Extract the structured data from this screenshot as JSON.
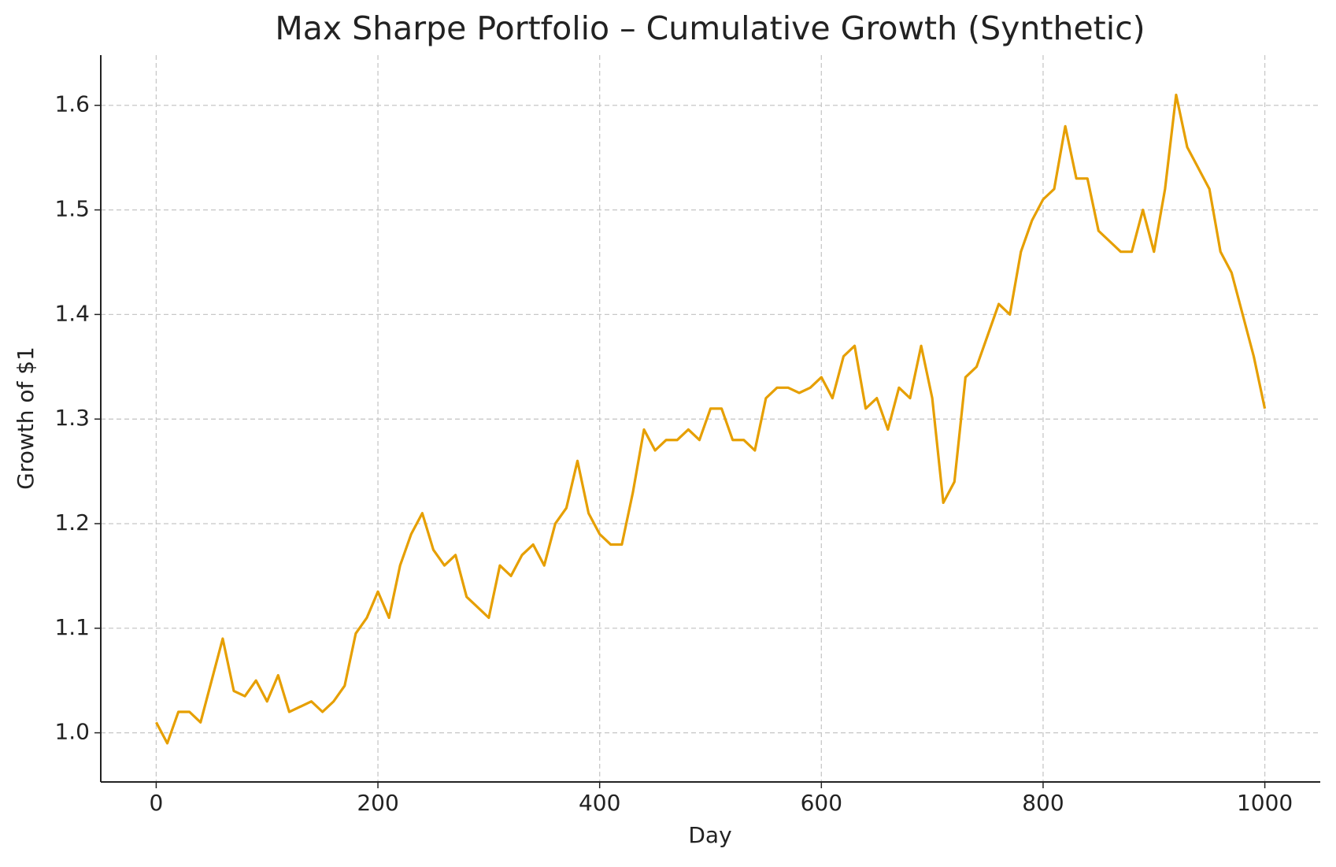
{
  "chart_data": {
    "type": "line",
    "title": "Max Sharpe Portfolio – Cumulative Growth (Synthetic)",
    "x_label": "Day",
    "y_label": "Growth of $1",
    "x": [
      0,
      10,
      20,
      30,
      40,
      50,
      60,
      70,
      80,
      90,
      100,
      110,
      120,
      130,
      140,
      150,
      160,
      170,
      180,
      190,
      200,
      210,
      220,
      230,
      240,
      250,
      260,
      270,
      280,
      290,
      300,
      310,
      320,
      330,
      340,
      350,
      360,
      370,
      380,
      390,
      400,
      410,
      420,
      430,
      440,
      450,
      460,
      470,
      480,
      490,
      500,
      510,
      520,
      530,
      540,
      550,
      560,
      570,
      580,
      590,
      600,
      610,
      620,
      630,
      640,
      650,
      660,
      670,
      680,
      690,
      700,
      710,
      720,
      730,
      740,
      750,
      760,
      770,
      780,
      790,
      800,
      810,
      820,
      830,
      840,
      850,
      860,
      870,
      880,
      890,
      900,
      910,
      920,
      930,
      940,
      950,
      960,
      970,
      980,
      990,
      1000
    ],
    "series": [
      {
        "name": "Max Sharpe",
        "color": "#E69F00",
        "values": [
          1.01,
          0.99,
          1.02,
          1.02,
          1.01,
          1.05,
          1.09,
          1.04,
          1.035,
          1.05,
          1.03,
          1.055,
          1.02,
          1.025,
          1.03,
          1.02,
          1.03,
          1.045,
          1.095,
          1.11,
          1.135,
          1.11,
          1.16,
          1.19,
          1.21,
          1.175,
          1.16,
          1.17,
          1.13,
          1.12,
          1.11,
          1.16,
          1.15,
          1.17,
          1.18,
          1.16,
          1.2,
          1.215,
          1.26,
          1.21,
          1.19,
          1.18,
          1.18,
          1.23,
          1.29,
          1.27,
          1.28,
          1.28,
          1.29,
          1.28,
          1.31,
          1.31,
          1.28,
          1.28,
          1.27,
          1.32,
          1.33,
          1.33,
          1.325,
          1.33,
          1.34,
          1.32,
          1.36,
          1.37,
          1.31,
          1.32,
          1.29,
          1.33,
          1.32,
          1.37,
          1.32,
          1.22,
          1.24,
          1.34,
          1.35,
          1.38,
          1.41,
          1.4,
          1.46,
          1.49,
          1.51,
          1.52,
          1.58,
          1.53,
          1.53,
          1.48,
          1.47,
          1.46,
          1.46,
          1.5,
          1.46,
          1.52,
          1.61,
          1.56,
          1.54,
          1.52,
          1.46,
          1.44,
          1.4,
          1.36,
          1.31
        ]
      }
    ],
    "xlim": [
      -50,
      1050
    ],
    "ylim": [
      0.953,
      1.648
    ],
    "xticks": [
      0,
      200,
      400,
      600,
      800,
      1000
    ],
    "yticks": [
      {
        "value": 1.0,
        "label": "1.0"
      },
      1.1,
      1.2,
      1.3,
      1.4,
      1.5,
      1.6
    ],
    "grid": true
  }
}
